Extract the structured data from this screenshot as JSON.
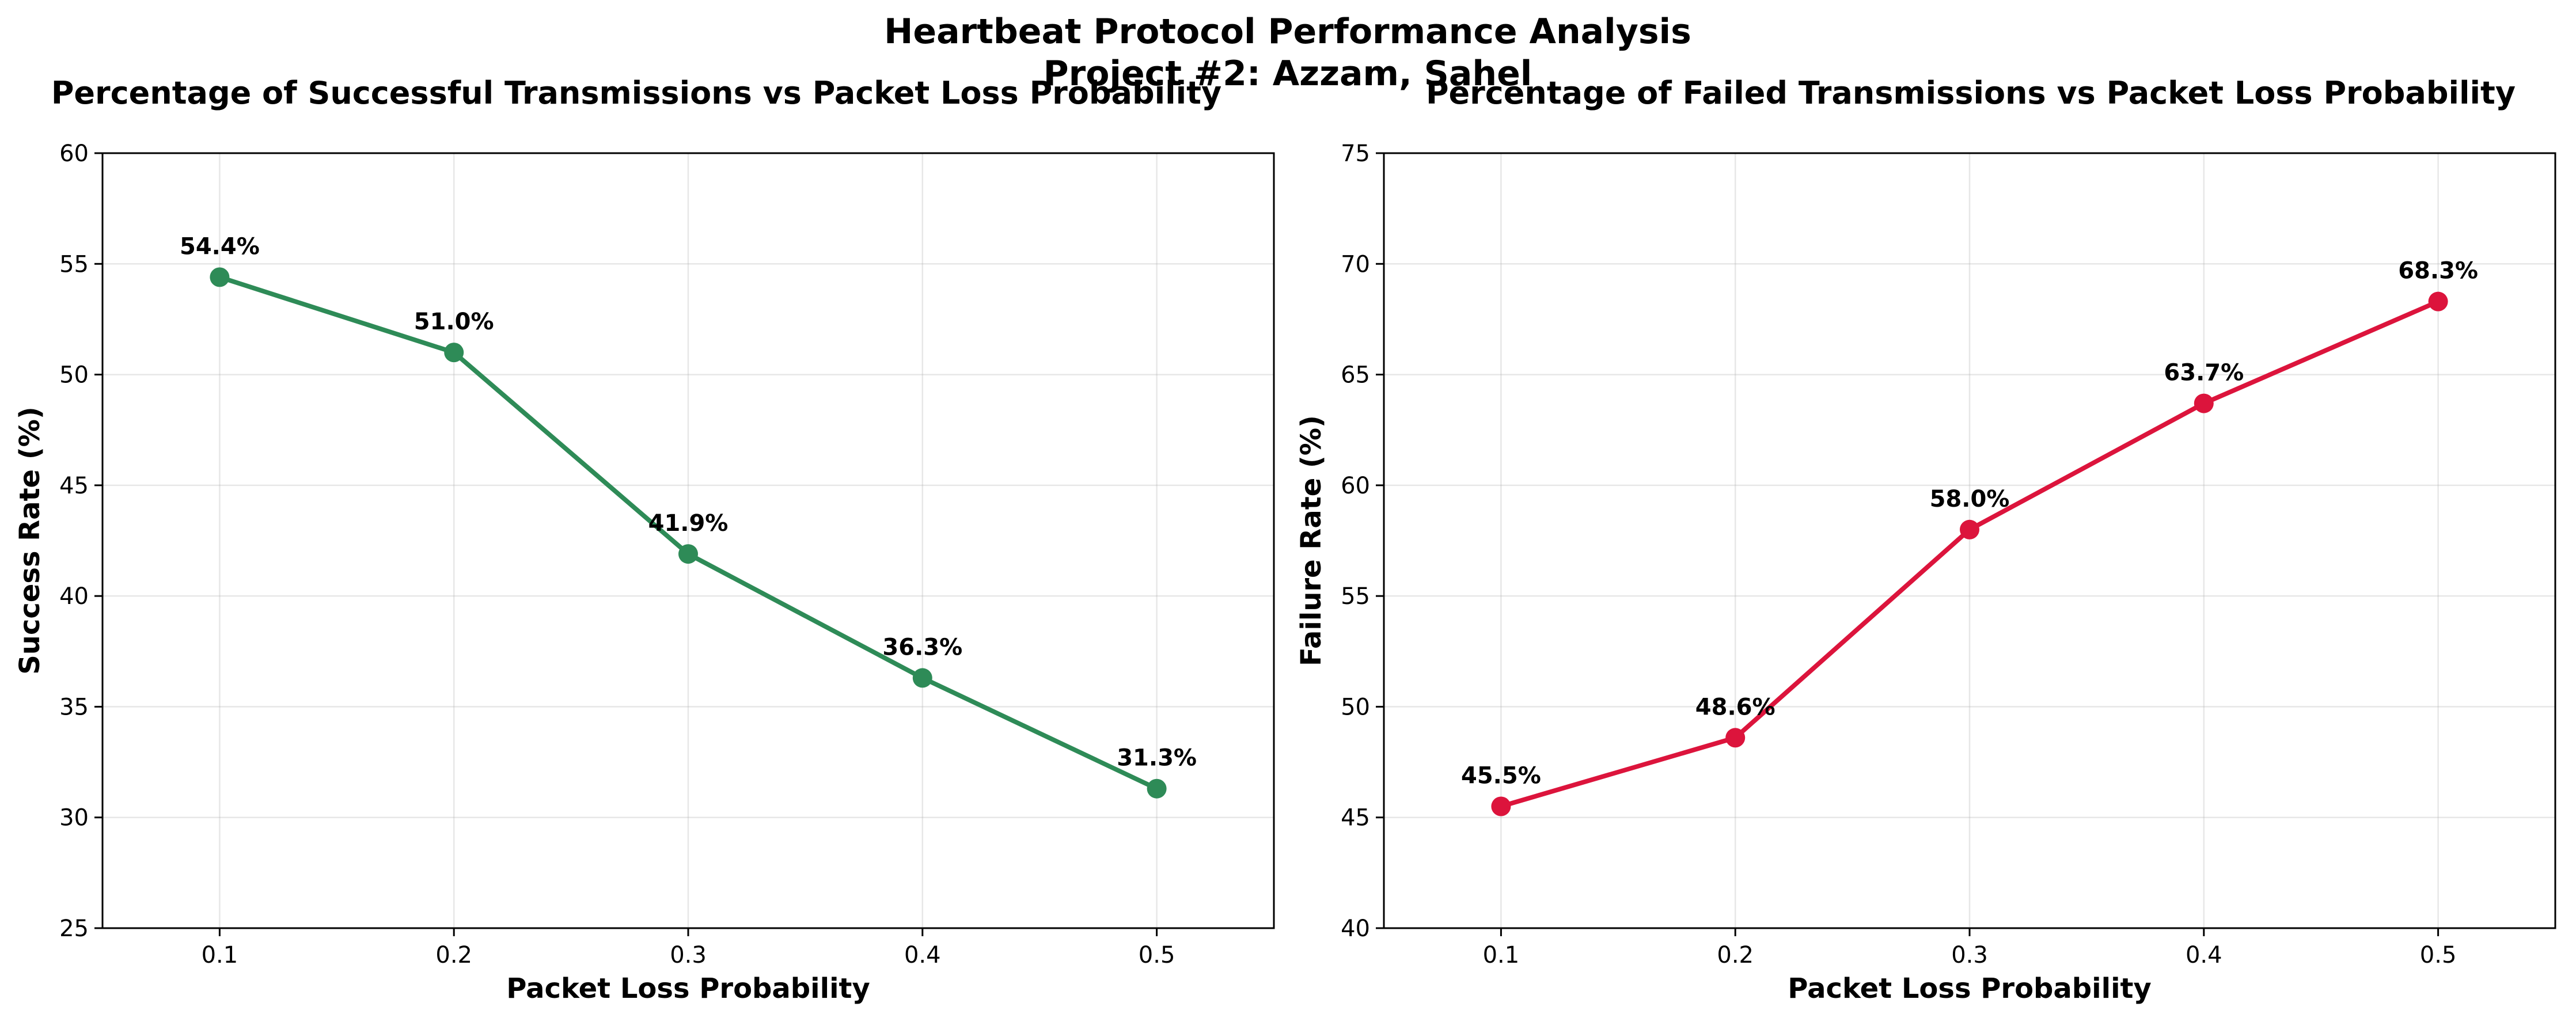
{
  "figure": {
    "title_line1": "Heartbeat Protocol Performance Analysis",
    "title_line2": "Project #2: Azzam, Sahel"
  },
  "chart_data": [
    {
      "type": "line",
      "title": "Percentage of Successful Transmissions vs Packet Loss Probability",
      "xlabel": "Packet Loss Probability",
      "ylabel": "Success Rate (%)",
      "x": [
        0.1,
        0.2,
        0.3,
        0.4,
        0.5
      ],
      "x_tick_labels": [
        "0.1",
        "0.2",
        "0.3",
        "0.4",
        "0.5"
      ],
      "xlim": [
        0.05,
        0.55
      ],
      "ylim": [
        25,
        60
      ],
      "y_ticks": [
        25,
        30,
        35,
        40,
        45,
        50,
        55,
        60
      ],
      "grid": true,
      "series": [
        {
          "values": [
            54.4,
            51.0,
            41.9,
            36.3,
            31.3
          ],
          "labels": [
            "54.4%",
            "51.0%",
            "41.9%",
            "36.3%",
            "31.3%"
          ],
          "color": "#2e8b57"
        }
      ]
    },
    {
      "type": "line",
      "title": "Percentage of Failed Transmissions vs Packet Loss Probability",
      "xlabel": "Packet Loss Probability",
      "ylabel": "Failure Rate (%)",
      "x": [
        0.1,
        0.2,
        0.3,
        0.4,
        0.5
      ],
      "x_tick_labels": [
        "0.1",
        "0.2",
        "0.3",
        "0.4",
        "0.5"
      ],
      "xlim": [
        0.05,
        0.55
      ],
      "ylim": [
        40,
        75
      ],
      "y_ticks": [
        40,
        45,
        50,
        55,
        60,
        65,
        70,
        75
      ],
      "grid": true,
      "series": [
        {
          "values": [
            45.5,
            48.6,
            58.0,
            63.7,
            68.3
          ],
          "labels": [
            "45.5%",
            "48.6%",
            "58.0%",
            "63.7%",
            "68.3%"
          ],
          "color": "#dc143c"
        }
      ]
    }
  ]
}
